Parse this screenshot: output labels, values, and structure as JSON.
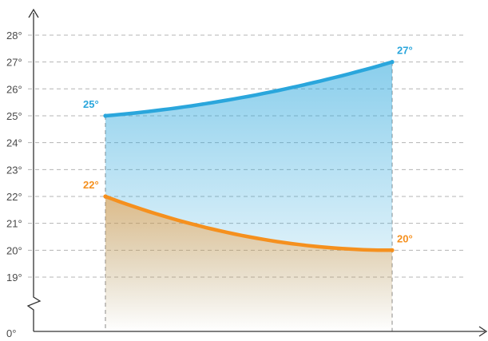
{
  "chart_data": {
    "type": "area",
    "title": "",
    "xlabel": "",
    "ylabel": "",
    "x": [
      0,
      1
    ],
    "y_ticks": [
      "0°",
      "19°",
      "20°",
      "21°",
      "22°",
      "23°",
      "24°",
      "25°",
      "26°",
      "27°",
      "28°"
    ],
    "y_axis_break": "between 0° and 19°",
    "ylim": [
      19,
      28
    ],
    "grid": true,
    "series": [
      {
        "values": [
          25,
          27
        ],
        "labels": [
          "25°",
          "27°"
        ],
        "color": "#2aa6dc",
        "curve": "concave-up"
      },
      {
        "values": [
          22,
          20
        ],
        "labels": [
          "22°",
          "20°"
        ],
        "color": "#f5901e",
        "curve": "decelerating-down"
      }
    ]
  }
}
